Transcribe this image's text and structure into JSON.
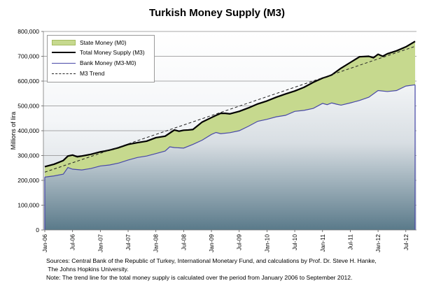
{
  "title": "Turkish Money Supply (M3)",
  "chart_data": {
    "type": "area",
    "title": "Turkish Money Supply (M3)",
    "ylabel": "Millions of lira",
    "xlabel": "",
    "ylim": [
      0,
      800000
    ],
    "yticks": [
      "0",
      "100,000",
      "200,000",
      "300,000",
      "400,000",
      "500,000",
      "600,000",
      "700,000",
      "800,000"
    ],
    "ytick_values": [
      0,
      100000,
      200000,
      300000,
      400000,
      500000,
      600000,
      700000,
      800000
    ],
    "xticks": [
      "Jan-06",
      "Jul-06",
      "Jan-07",
      "Jul-07",
      "Jan-08",
      "Jul-08",
      "Jan-09",
      "Jul-09",
      "Jan-10",
      "Jul-10",
      "Jan-11",
      "Jul-11",
      "Jan-12",
      "Jul-12"
    ],
    "xtick_months": [
      0,
      6,
      12,
      18,
      24,
      30,
      36,
      42,
      48,
      54,
      60,
      66,
      72,
      78
    ],
    "months": 81,
    "legend": [
      "State Money (M0)",
      "Total Money Supply (M3)",
      "Bank Money (M3-M0)",
      "M3 Trend"
    ],
    "legend_position": "top-left",
    "series": [
      {
        "name": "Total Money Supply (M3)",
        "x_month": [
          0,
          2,
          4,
          5,
          6,
          7,
          8,
          10,
          12,
          13,
          14,
          16,
          18,
          20,
          22,
          24,
          26,
          28,
          29,
          30,
          31,
          32,
          34,
          36,
          37,
          38,
          39,
          40,
          42,
          44,
          46,
          48,
          50,
          52,
          54,
          56,
          58,
          60,
          61,
          62,
          64,
          66,
          68,
          70,
          71,
          72,
          73,
          74,
          76,
          78,
          80
        ],
        "values": [
          255000,
          265000,
          280000,
          298000,
          302000,
          295000,
          298000,
          305000,
          315000,
          318000,
          322000,
          332000,
          345000,
          352000,
          358000,
          372000,
          378000,
          403000,
          398000,
          402000,
          403000,
          405000,
          435000,
          453000,
          462000,
          470000,
          470000,
          468000,
          478000,
          492000,
          508000,
          520000,
          535000,
          548000,
          560000,
          575000,
          595000,
          612000,
          618000,
          625000,
          652000,
          675000,
          698000,
          700000,
          694000,
          708000,
          700000,
          710000,
          722000,
          738000,
          760000
        ]
      },
      {
        "name": "Bank Money (M3-M0)",
        "x_month": [
          0,
          2,
          4,
          5,
          6,
          8,
          10,
          12,
          14,
          16,
          18,
          20,
          22,
          24,
          26,
          27,
          28,
          30,
          32,
          34,
          36,
          37,
          38,
          40,
          42,
          44,
          46,
          48,
          50,
          52,
          54,
          56,
          58,
          60,
          61,
          62,
          63,
          64,
          66,
          68,
          70,
          72,
          74,
          76,
          78,
          80
        ],
        "values": [
          213000,
          218000,
          225000,
          252000,
          245000,
          242000,
          248000,
          258000,
          262000,
          270000,
          282000,
          292000,
          298000,
          308000,
          318000,
          335000,
          332000,
          330000,
          345000,
          362000,
          385000,
          393000,
          388000,
          392000,
          400000,
          418000,
          438000,
          446000,
          456000,
          462000,
          478000,
          482000,
          490000,
          510000,
          505000,
          512000,
          507000,
          503000,
          512000,
          522000,
          535000,
          562000,
          558000,
          562000,
          580000,
          585000
        ]
      },
      {
        "name": "M3 Trend",
        "x_month": [
          0,
          80
        ],
        "values": [
          233000,
          740000
        ]
      }
    ]
  },
  "notes": [
    "Sources: Central Bank of the Republic of Turkey, International Monetary Fund, and calculations by Prof. Dr. Steve H. Hanke,",
    " The Johns Hopkins University.",
    "Note: The trend line for the total money supply is calculated over the period from January 2006 to September 2012."
  ]
}
